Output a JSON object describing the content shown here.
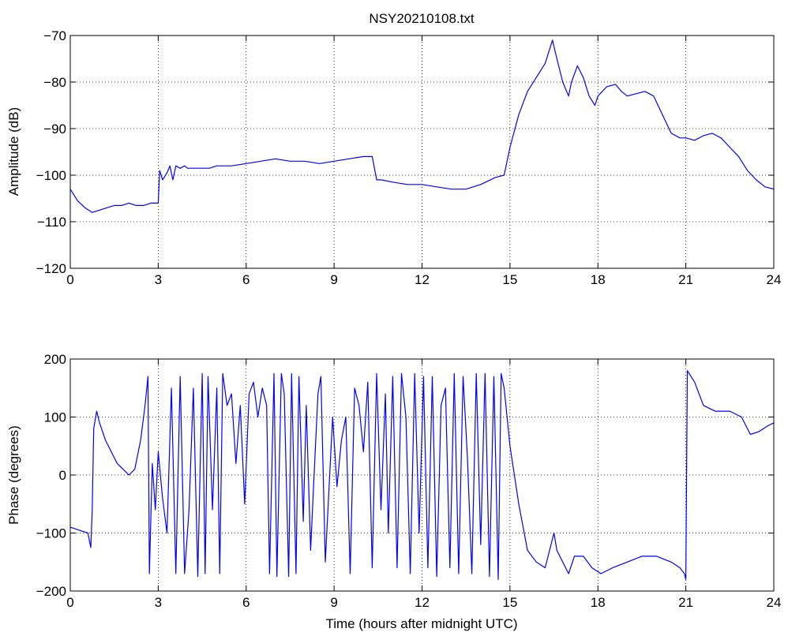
{
  "figure": {
    "title": "NSY20210108.txt",
    "xlabel": "Time (hours after midnight UTC)",
    "line_color": "#0000ff",
    "grid": true,
    "grid_style": "dotted"
  },
  "chart_data": [
    {
      "type": "line",
      "name": "amplitude",
      "title": "NSY20210108.txt",
      "xlabel": "",
      "ylabel": "Amplitude (dB)",
      "xlim": [
        0,
        24
      ],
      "ylim": [
        -120,
        -70
      ],
      "xticks": [
        0,
        3,
        6,
        9,
        12,
        15,
        18,
        21,
        24
      ],
      "yticks": [
        -120,
        -110,
        -100,
        -90,
        -80,
        -70
      ],
      "xtick_labels": [
        "0",
        "3",
        "6",
        "9",
        "12",
        "15",
        "18",
        "21",
        "24"
      ],
      "ytick_labels": [
        "−120",
        "−110",
        "−100",
        "−90",
        "−80",
        "−70"
      ],
      "grid": true,
      "series": [
        {
          "x": [
            0,
            0.25,
            0.5,
            0.75,
            1.0,
            1.25,
            1.5,
            1.75,
            2.0,
            2.25,
            2.5,
            2.75,
            3.0,
            3.05,
            3.15,
            3.3,
            3.4,
            3.5,
            3.6,
            3.75,
            3.9,
            4.0,
            4.25,
            4.5,
            4.75,
            5.0,
            5.5,
            6.0,
            6.5,
            7.0,
            7.5,
            8.0,
            8.5,
            9.0,
            9.5,
            10.0,
            10.3,
            10.45,
            10.6,
            11.0,
            11.5,
            12.0,
            12.5,
            13.0,
            13.5,
            14.0,
            14.5,
            14.8,
            15.0,
            15.3,
            15.6,
            15.9,
            16.2,
            16.45,
            16.6,
            16.8,
            17.0,
            17.1,
            17.3,
            17.5,
            17.7,
            17.9,
            18.0,
            18.3,
            18.6,
            18.8,
            19.0,
            19.3,
            19.6,
            19.9,
            20.2,
            20.5,
            20.8,
            21.0,
            21.3,
            21.6,
            21.9,
            22.2,
            22.5,
            22.8,
            23.1,
            23.4,
            23.7,
            24.0
          ],
          "y": [
            -103,
            -105.5,
            -107,
            -108,
            -107.5,
            -107,
            -106.5,
            -106.5,
            -106,
            -106.5,
            -106.5,
            -106,
            -106,
            -99,
            -101,
            -99.5,
            -98,
            -101,
            -98,
            -98.5,
            -98,
            -98.5,
            -98.5,
            -98.5,
            -98.5,
            -98,
            -98,
            -97.5,
            -97,
            -96.5,
            -97,
            -97,
            -97.5,
            -97,
            -96.5,
            -96,
            -96,
            -101,
            -101,
            -101.5,
            -102,
            -102,
            -102.5,
            -103,
            -103,
            -102,
            -100.5,
            -100,
            -94,
            -87,
            -82,
            -79,
            -76,
            -71,
            -75,
            -80,
            -83,
            -80,
            -76.5,
            -79,
            -83,
            -85,
            -83,
            -81,
            -80.5,
            -82,
            -83,
            -82.5,
            -82,
            -83,
            -87,
            -91,
            -92,
            -92,
            -92.5,
            -91.5,
            -91,
            -92,
            -94,
            -96,
            -99,
            -101,
            -102.5,
            -103
          ]
        }
      ]
    },
    {
      "type": "line",
      "name": "phase",
      "title": "",
      "xlabel": "Time (hours after midnight UTC)",
      "ylabel": "Phase (degrees)",
      "xlim": [
        0,
        24
      ],
      "ylim": [
        -200,
        200
      ],
      "xticks": [
        0,
        3,
        6,
        9,
        12,
        15,
        18,
        21,
        24
      ],
      "yticks": [
        -200,
        -100,
        0,
        100,
        200
      ],
      "xtick_labels": [
        "0",
        "3",
        "6",
        "9",
        "12",
        "15",
        "18",
        "21",
        "24"
      ],
      "ytick_labels": [
        "−200",
        "−100",
        "0",
        "100",
        "200"
      ],
      "grid": true,
      "series": [
        {
          "x": [
            0,
            0.3,
            0.6,
            0.7,
            0.75,
            0.8,
            0.9,
            1.0,
            1.2,
            1.4,
            1.6,
            1.8,
            2.0,
            2.2,
            2.4,
            2.55,
            2.65,
            2.7,
            2.8,
            2.9,
            3.0,
            3.15,
            3.3,
            3.45,
            3.6,
            3.75,
            3.9,
            4.05,
            4.2,
            4.35,
            4.5,
            4.6,
            4.7,
            4.85,
            5.0,
            5.1,
            5.2,
            5.35,
            5.5,
            5.65,
            5.8,
            5.95,
            6.1,
            6.25,
            6.4,
            6.55,
            6.7,
            6.8,
            6.95,
            7.05,
            7.2,
            7.3,
            7.45,
            7.55,
            7.7,
            7.8,
            7.95,
            8.05,
            8.2,
            8.3,
            8.45,
            8.55,
            8.7,
            8.8,
            8.95,
            9.1,
            9.25,
            9.4,
            9.55,
            9.7,
            9.85,
            10.0,
            10.15,
            10.3,
            10.45,
            10.6,
            10.75,
            10.85,
            11.0,
            11.15,
            11.3,
            11.45,
            11.6,
            11.75,
            11.9,
            12.05,
            12.2,
            12.35,
            12.5,
            12.65,
            12.8,
            12.95,
            13.1,
            13.25,
            13.4,
            13.55,
            13.7,
            13.85,
            14.0,
            14.15,
            14.3,
            14.45,
            14.6,
            14.7,
            14.8,
            15.0,
            15.3,
            15.6,
            15.9,
            16.2,
            16.5,
            16.6,
            16.8,
            17.0,
            17.2,
            17.5,
            17.8,
            18.1,
            18.5,
            19.0,
            19.5,
            20.0,
            20.5,
            20.8,
            20.95,
            21.0,
            21.05,
            21.3,
            21.6,
            22.0,
            22.5,
            22.9,
            23.2,
            23.5,
            23.8,
            24.0
          ],
          "y": [
            -90,
            -95,
            -100,
            -125,
            -60,
            80,
            110,
            90,
            60,
            40,
            20,
            10,
            0,
            10,
            60,
            120,
            170,
            -170,
            20,
            -60,
            40,
            -40,
            -100,
            150,
            -170,
            170,
            -170,
            -60,
            150,
            -175,
            175,
            -170,
            170,
            -60,
            150,
            -170,
            175,
            120,
            140,
            20,
            120,
            -50,
            140,
            160,
            100,
            150,
            120,
            -170,
            175,
            -175,
            175,
            140,
            -175,
            175,
            -170,
            170,
            -80,
            120,
            -130,
            -20,
            140,
            170,
            -150,
            -50,
            100,
            -20,
            60,
            100,
            -170,
            150,
            120,
            40,
            160,
            -160,
            175,
            -60,
            140,
            -100,
            170,
            -160,
            175,
            100,
            -170,
            175,
            -100,
            170,
            -160,
            170,
            -175,
            120,
            150,
            -160,
            175,
            -170,
            170,
            30,
            -170,
            175,
            -120,
            175,
            -175,
            170,
            -180,
            175,
            150,
            50,
            -50,
            -130,
            -150,
            -160,
            -100,
            -130,
            -150,
            -170,
            -140,
            -140,
            -160,
            -170,
            -160,
            -150,
            -140,
            -140,
            -150,
            -160,
            -170,
            -180,
            180,
            160,
            120,
            110,
            110,
            100,
            70,
            75,
            85,
            90
          ]
        }
      ]
    }
  ]
}
